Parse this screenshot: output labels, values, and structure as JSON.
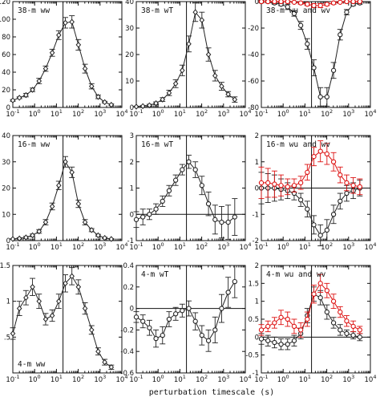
{
  "figure": {
    "xlabel": "perturbation timescale (s)"
  },
  "chart_data": [
    {
      "type": "line",
      "title": "38-m ww",
      "xscale": "log",
      "xlim": [
        0.1,
        10000
      ],
      "ylim": [
        0,
        120
      ],
      "yticks": [
        0,
        20,
        40,
        60,
        80,
        100,
        120
      ],
      "vline": 20,
      "series": [
        {
          "color": "#222222",
          "marker": "diamond",
          "x": [
            0.1,
            0.2,
            0.4,
            0.8,
            1.6,
            3.2,
            6.4,
            12.8,
            25.6,
            51.2,
            102,
            205,
            410,
            819,
            1638,
            3277
          ],
          "y": [
            8,
            11,
            14,
            20,
            30,
            44,
            62,
            82,
            96,
            97,
            71,
            44,
            24,
            12,
            6,
            3
          ],
          "err": [
            1,
            1,
            2,
            2,
            3,
            3,
            4,
            5,
            6,
            7,
            6,
            5,
            3,
            2,
            1,
            1
          ]
        }
      ]
    },
    {
      "type": "line",
      "title": "38-m wT",
      "xscale": "log",
      "xlim": [
        0.1,
        10000
      ],
      "ylim": [
        0,
        40
      ],
      "yticks": [
        0,
        10,
        20,
        30,
        40
      ],
      "vline": 20,
      "series": [
        {
          "color": "#222222",
          "marker": "diamond",
          "x": [
            0.1,
            0.2,
            0.4,
            0.8,
            1.6,
            3.2,
            6.4,
            12.8,
            25.6,
            51.2,
            102,
            205,
            410,
            819,
            1638,
            3277
          ],
          "y": [
            0.3,
            0.5,
            0.8,
            1.6,
            3,
            5.5,
            9,
            14,
            24,
            36,
            33,
            20,
            12,
            8,
            5,
            3
          ],
          "err": [
            0.2,
            0.3,
            0.4,
            0.5,
            0.7,
            1,
            1.5,
            2,
            3,
            3.5,
            3,
            2.5,
            2,
            1.5,
            1,
            1
          ]
        }
      ]
    },
    {
      "type": "line",
      "title": "38-m wu and wv",
      "xscale": "log",
      "xlim": [
        0.1,
        10000
      ],
      "ylim": [
        -80,
        0
      ],
      "yticks": [
        -80,
        -60,
        -40,
        -20,
        0
      ],
      "vline": 20,
      "series": [
        {
          "color": "#222222",
          "marker": "circle",
          "x": [
            0.1,
            0.2,
            0.4,
            0.8,
            1.6,
            3.2,
            6.4,
            12.8,
            25.6,
            51.2,
            102,
            205,
            410,
            819,
            1638,
            3277
          ],
          "y": [
            0,
            0,
            -1,
            -2,
            -4,
            -9,
            -18,
            -32,
            -50,
            -72,
            -72,
            -52,
            -25,
            -8,
            -2,
            -1
          ],
          "err": [
            1,
            1,
            1,
            1,
            2,
            2,
            3,
            4,
            6,
            7,
            7,
            6,
            4,
            2,
            1,
            1
          ]
        },
        {
          "color": "#dd1111",
          "marker": "circle",
          "x": [
            0.1,
            0.2,
            0.4,
            0.8,
            1.6,
            3.2,
            6.4,
            12.8,
            25.6,
            51.2,
            102,
            205,
            410,
            819,
            1638,
            3277
          ],
          "y": [
            0,
            0,
            0,
            0,
            0,
            -0.5,
            -1,
            -2,
            -3,
            -3,
            -2,
            -1,
            -0.5,
            0,
            0,
            0
          ],
          "err": [
            0.5,
            0.5,
            0.5,
            0.5,
            0.5,
            0.5,
            1,
            1,
            1.5,
            1.5,
            1,
            1,
            0.5,
            0.5,
            0.5,
            0.5
          ]
        }
      ]
    },
    {
      "type": "line",
      "title": "16-m ww",
      "xscale": "log",
      "xlim": [
        0.1,
        10000
      ],
      "ylim": [
        0,
        40
      ],
      "yticks": [
        0,
        10,
        20,
        30,
        40
      ],
      "vline": 20,
      "series": [
        {
          "color": "#222222",
          "marker": "diamond",
          "x": [
            0.1,
            0.2,
            0.4,
            0.8,
            1.6,
            3.2,
            6.4,
            12.8,
            25.6,
            51.2,
            102,
            205,
            410,
            819,
            1638,
            3277
          ],
          "y": [
            0.6,
            0.8,
            1.2,
            2,
            3.5,
            7,
            13,
            21,
            30,
            26,
            14,
            7,
            4,
            2,
            1,
            0.6
          ],
          "err": [
            0.2,
            0.3,
            0.4,
            0.5,
            0.7,
            1,
            1.3,
            1.6,
            2,
            2,
            1.4,
            1,
            0.6,
            0.4,
            0.3,
            0.2
          ]
        }
      ]
    },
    {
      "type": "line",
      "title": "16-m wT",
      "xscale": "log",
      "xlim": [
        0.1,
        10000
      ],
      "ylim": [
        -1,
        3
      ],
      "yticks": [
        -1,
        0,
        1,
        2,
        3
      ],
      "vline": 20,
      "hline": 0,
      "series": [
        {
          "color": "#222222",
          "marker": "circle",
          "x": [
            0.1,
            0.2,
            0.4,
            0.8,
            1.6,
            3.2,
            6.4,
            12.8,
            25.6,
            51.2,
            102,
            205,
            410,
            819,
            1638,
            3277
          ],
          "y": [
            -0.2,
            -0.1,
            0,
            0.2,
            0.5,
            0.9,
            1.3,
            1.7,
            2.0,
            1.7,
            1.1,
            0.4,
            -0.2,
            -0.3,
            -0.3,
            -0.1
          ],
          "err": [
            0.3,
            0.3,
            0.2,
            0.2,
            0.2,
            0.2,
            0.2,
            0.2,
            0.25,
            0.3,
            0.35,
            0.45,
            0.55,
            0.6,
            0.65,
            0.7
          ]
        }
      ]
    },
    {
      "type": "line",
      "title": "16-m wu and wv",
      "xscale": "log",
      "xlim": [
        0.1,
        10000
      ],
      "ylim": [
        -2,
        2
      ],
      "yticks": [
        -2,
        -1,
        0,
        1,
        2
      ],
      "vline": 20,
      "hline": 0,
      "series": [
        {
          "color": "#222222",
          "marker": "circle",
          "x": [
            0.1,
            0.2,
            0.4,
            0.8,
            1.6,
            3.2,
            6.4,
            12.8,
            25.6,
            51.2,
            102,
            205,
            410,
            819,
            1638,
            3277
          ],
          "y": [
            0,
            0,
            0,
            -0.05,
            -0.1,
            -0.2,
            -0.45,
            -0.8,
            -1.4,
            -1.8,
            -1.6,
            -1.0,
            -0.5,
            -0.2,
            -0.1,
            0
          ],
          "err": [
            0.6,
            0.55,
            0.5,
            0.4,
            0.3,
            0.25,
            0.25,
            0.3,
            0.35,
            0.4,
            0.4,
            0.35,
            0.3,
            0.3,
            0.3,
            0.3
          ]
        },
        {
          "color": "#dd1111",
          "marker": "circle",
          "x": [
            0.1,
            0.2,
            0.4,
            0.8,
            1.6,
            3.2,
            6.4,
            12.8,
            25.6,
            51.2,
            102,
            205,
            410,
            819,
            1638,
            3277
          ],
          "y": [
            0.2,
            0.2,
            0.15,
            0.1,
            0.05,
            0.1,
            0.2,
            0.6,
            1.2,
            1.4,
            1.3,
            1.0,
            0.5,
            0.2,
            0.1,
            0.05
          ],
          "err": [
            0.6,
            0.55,
            0.5,
            0.4,
            0.3,
            0.25,
            0.25,
            0.3,
            0.35,
            0.4,
            0.4,
            0.35,
            0.3,
            0.3,
            0.3,
            0.3
          ]
        }
      ]
    },
    {
      "type": "line",
      "title": "4-m ww",
      "xscale": "log",
      "xlim": [
        0.1,
        10000
      ],
      "ylim": [
        0,
        1.5
      ],
      "yticks": [
        0.5,
        1,
        1.5
      ],
      "ytick_labels": [
        ".5",
        "1",
        "1.5"
      ],
      "vline": 20,
      "series": [
        {
          "color": "#222222",
          "marker": "diamond",
          "x": [
            0.1,
            0.2,
            0.4,
            0.8,
            1.6,
            3.2,
            6.4,
            12.8,
            25.6,
            51.2,
            102,
            205,
            410,
            819,
            1638,
            3277
          ],
          "y": [
            0.55,
            0.9,
            1.05,
            1.2,
            1.0,
            0.75,
            0.8,
            1.0,
            1.25,
            1.35,
            1.2,
            0.9,
            0.6,
            0.3,
            0.15,
            0.08
          ],
          "err": [
            0.08,
            0.1,
            0.1,
            0.12,
            0.1,
            0.08,
            0.08,
            0.1,
            0.12,
            0.12,
            0.1,
            0.08,
            0.06,
            0.05,
            0.04,
            0.03
          ]
        }
      ]
    },
    {
      "type": "line",
      "title": "4-m wT",
      "xscale": "log",
      "xlim": [
        0.1,
        10000
      ],
      "ylim": [
        -0.6,
        0.4
      ],
      "yticks": [
        -0.6,
        -0.4,
        -0.2,
        0,
        0.2,
        0.4
      ],
      "vline": 20,
      "hline": 0,
      "series": [
        {
          "color": "#222222",
          "marker": "circle",
          "x": [
            0.1,
            0.2,
            0.4,
            0.8,
            1.6,
            3.2,
            6.4,
            12.8,
            25.6,
            51.2,
            102,
            205,
            410,
            819,
            1638,
            3277
          ],
          "y": [
            -0.08,
            -0.12,
            -0.18,
            -0.28,
            -0.25,
            -0.1,
            -0.05,
            -0.02,
            0,
            -0.12,
            -0.25,
            -0.3,
            -0.2,
            0,
            0.15,
            0.25
          ],
          "err": [
            0.05,
            0.06,
            0.07,
            0.08,
            0.08,
            0.07,
            0.06,
            0.06,
            0.07,
            0.08,
            0.09,
            0.1,
            0.12,
            0.13,
            0.14,
            0.15
          ]
        }
      ]
    },
    {
      "type": "line",
      "title": "4-m wu and wv",
      "xscale": "log",
      "xlim": [
        0.1,
        10000
      ],
      "ylim": [
        -1,
        2
      ],
      "yticks": [
        -1,
        -0.5,
        0,
        0.5,
        1,
        1.5,
        2
      ],
      "ytick_labels": [
        "-1",
        "-0.5",
        "0",
        "0.5",
        "1",
        "1.5",
        "2"
      ],
      "vline": 20,
      "hline": 0,
      "series": [
        {
          "color": "#222222",
          "marker": "circle",
          "x": [
            0.1,
            0.2,
            0.4,
            0.8,
            1.6,
            3.2,
            6.4,
            12.8,
            25.6,
            51.2,
            102,
            205,
            410,
            819,
            1638,
            3277
          ],
          "y": [
            -0.05,
            -0.1,
            -0.15,
            -0.2,
            -0.2,
            -0.1,
            0.1,
            0.6,
            1.2,
            1.1,
            0.7,
            0.4,
            0.2,
            0.1,
            0.05,
            0
          ],
          "err": [
            0.15,
            0.15,
            0.15,
            0.15,
            0.15,
            0.15,
            0.15,
            0.2,
            0.2,
            0.2,
            0.2,
            0.15,
            0.15,
            0.1,
            0.1,
            0.1
          ]
        },
        {
          "color": "#dd1111",
          "marker": "circle",
          "x": [
            0.1,
            0.2,
            0.4,
            0.8,
            1.6,
            3.2,
            6.4,
            12.8,
            25.6,
            51.2,
            102,
            205,
            410,
            819,
            1638,
            3277
          ],
          "y": [
            0.2,
            0.3,
            0.4,
            0.55,
            0.5,
            0.3,
            0.2,
            0.5,
            1.2,
            1.5,
            1.3,
            1.0,
            0.7,
            0.45,
            0.3,
            0.2
          ],
          "err": [
            0.15,
            0.15,
            0.15,
            0.2,
            0.2,
            0.2,
            0.2,
            0.2,
            0.25,
            0.25,
            0.2,
            0.2,
            0.15,
            0.15,
            0.15,
            0.1
          ]
        }
      ]
    }
  ]
}
